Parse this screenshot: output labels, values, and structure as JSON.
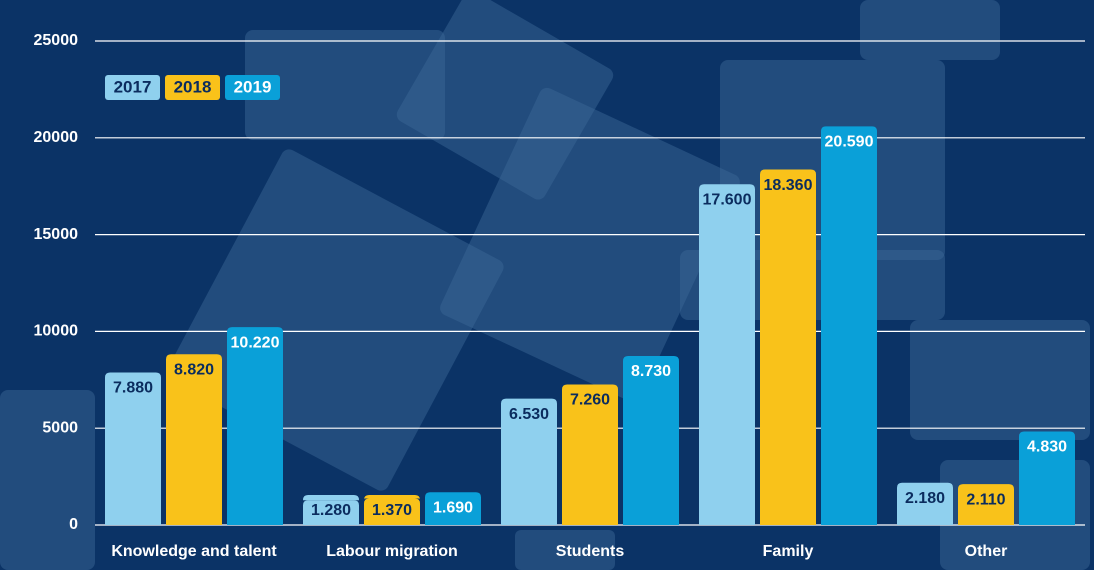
{
  "chart_data": {
    "type": "bar",
    "categories": [
      "Knowledge and talent",
      "Labour migration",
      "Students",
      "Family",
      "Other"
    ],
    "series": [
      {
        "name": "2017",
        "color": "#8fd0ee",
        "values": [
          7880,
          1280,
          6530,
          17600,
          2180
        ],
        "value_labels": [
          "7.880",
          "1.280",
          "6.530",
          "17.600",
          "2.180"
        ]
      },
      {
        "name": "2018",
        "color": "#f9c21a",
        "values": [
          8820,
          1370,
          7260,
          18360,
          2110
        ],
        "value_labels": [
          "8.820",
          "1.370",
          "7.260",
          "18.360",
          "2.110"
        ]
      },
      {
        "name": "2019",
        "color": "#0aa0d8",
        "values": [
          10220,
          1690,
          8730,
          20590,
          4830
        ],
        "value_labels": [
          "10.220",
          "1.690",
          "8.730",
          "20.590",
          "4.830"
        ]
      }
    ],
    "ylim": [
      0,
      25000
    ],
    "yticks": [
      0,
      5000,
      10000,
      15000,
      20000,
      25000
    ],
    "grid": true
  }
}
